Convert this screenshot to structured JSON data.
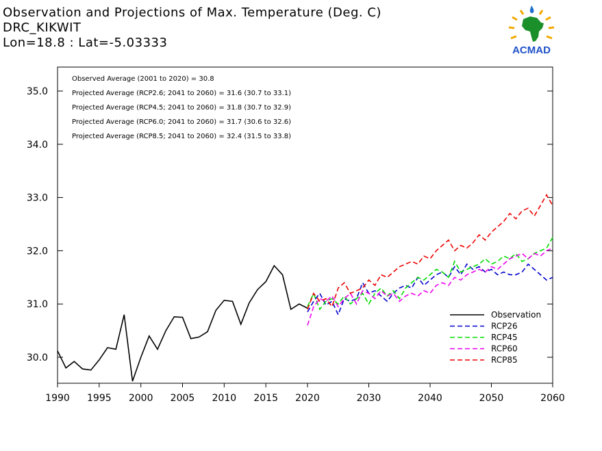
{
  "title": {
    "line1": "Observation and Projections of Max. Temperature (Deg. C)",
    "line2": "DRC_KIKWIT",
    "line3": "Lon=18.8 : Lat=-5.03333"
  },
  "logo": {
    "text": "ACMAD"
  },
  "annotations": [
    "Observed Average (2001 to 2020) = 30.8",
    "Projected Average (RCP2.6; 2041 to 2060) = 31.6 (30.7 to 33.1)",
    "Projected Average (RCP4.5; 2041 to 2060) = 31.8 (30.7 to 32.9)",
    "Projected Average (RCP6.0; 2041 to 2060) = 31.7 (30.6 to 32.6)",
    "Projected Average (RCP8.5; 2041 to 2060) = 32.4 (31.5 to 33.8)"
  ],
  "chart_data": {
    "type": "line",
    "title": "Observation and Projections of Max. Temperature (Deg. C)",
    "xlabel": "",
    "ylabel": "",
    "xlim": [
      1990,
      2060
    ],
    "ylim": [
      29.5,
      35.5
    ],
    "x_ticks": [
      1990,
      1995,
      2000,
      2005,
      2010,
      2015,
      2020,
      2030,
      2040,
      2050,
      2060
    ],
    "y_ticks": [
      "30.0",
      "31.0",
      "32.0",
      "33.0",
      "34.0",
      "35.0"
    ],
    "legend_position": "bottom-right",
    "series": [
      {
        "name": "Observation",
        "color": "#000000",
        "dashed": false,
        "x": [
          1990,
          1991,
          1992,
          1993,
          1994,
          1995,
          1996,
          1997,
          1998,
          1999,
          2000,
          2001,
          2002,
          2003,
          2004,
          2005,
          2006,
          2007,
          2008,
          2009,
          2010,
          2011,
          2012,
          2013,
          2014,
          2015,
          2016,
          2017,
          2018,
          2019,
          2020
        ],
        "y": [
          30.12,
          29.8,
          29.92,
          29.78,
          29.76,
          29.95,
          30.18,
          30.15,
          30.8,
          29.55,
          30.0,
          30.4,
          30.15,
          30.5,
          30.76,
          30.75,
          30.35,
          30.38,
          30.48,
          30.88,
          31.07,
          31.05,
          30.62,
          31.02,
          31.27,
          31.42,
          31.72,
          31.55,
          30.9,
          31.0,
          30.92
        ]
      },
      {
        "name": "RCP26",
        "color": "#0000cc",
        "dashed": true,
        "x": [
          2020,
          2021,
          2022,
          2023,
          2024,
          2025,
          2026,
          2027,
          2028,
          2029,
          2030,
          2031,
          2032,
          2033,
          2034,
          2035,
          2036,
          2037,
          2038,
          2039,
          2040,
          2041,
          2042,
          2043,
          2044,
          2045,
          2046,
          2047,
          2048,
          2049,
          2050,
          2051,
          2052,
          2053,
          2054,
          2055,
          2056,
          2057,
          2058,
          2059,
          2060
        ],
        "y": [
          30.85,
          31.05,
          31.2,
          30.98,
          31.05,
          30.8,
          31.1,
          31.05,
          31.1,
          31.4,
          31.2,
          31.25,
          31.15,
          31.05,
          31.2,
          31.3,
          31.35,
          31.3,
          31.5,
          31.35,
          31.45,
          31.55,
          31.6,
          31.5,
          31.7,
          31.55,
          31.75,
          31.65,
          31.7,
          31.6,
          31.65,
          31.55,
          31.6,
          31.55,
          31.55,
          31.6,
          31.75,
          31.65,
          31.55,
          31.45,
          31.5
        ]
      },
      {
        "name": "RCP45",
        "color": "#00dd00",
        "dashed": true,
        "x": [
          2020,
          2021,
          2022,
          2023,
          2024,
          2025,
          2026,
          2027,
          2028,
          2029,
          2030,
          2031,
          2032,
          2033,
          2034,
          2035,
          2036,
          2037,
          2038,
          2039,
          2040,
          2041,
          2042,
          2043,
          2044,
          2045,
          2046,
          2047,
          2048,
          2049,
          2050,
          2051,
          2052,
          2053,
          2054,
          2055,
          2056,
          2057,
          2058,
          2059,
          2060
        ],
        "y": [
          30.95,
          31.2,
          30.9,
          31.05,
          31.1,
          31.0,
          31.15,
          31.0,
          31.1,
          31.2,
          31.0,
          31.2,
          31.3,
          31.15,
          31.25,
          31.1,
          31.3,
          31.4,
          31.5,
          31.45,
          31.55,
          31.65,
          31.6,
          31.5,
          31.8,
          31.6,
          31.65,
          31.7,
          31.75,
          31.85,
          31.75,
          31.8,
          31.9,
          31.85,
          31.95,
          31.8,
          31.85,
          31.95,
          32.0,
          32.05,
          32.25
        ]
      },
      {
        "name": "RCP60",
        "color": "#ee00ee",
        "dashed": true,
        "x": [
          2020,
          2021,
          2022,
          2023,
          2024,
          2025,
          2026,
          2027,
          2028,
          2029,
          2030,
          2031,
          2032,
          2033,
          2034,
          2035,
          2036,
          2037,
          2038,
          2039,
          2040,
          2041,
          2042,
          2043,
          2044,
          2045,
          2046,
          2047,
          2048,
          2049,
          2050,
          2051,
          2052,
          2053,
          2054,
          2055,
          2056,
          2057,
          2058,
          2059,
          2060
        ],
        "y": [
          30.6,
          30.95,
          31.1,
          31.05,
          31.15,
          30.95,
          31.1,
          31.2,
          31.0,
          31.25,
          31.2,
          31.1,
          31.25,
          31.15,
          31.2,
          31.05,
          31.15,
          31.2,
          31.15,
          31.25,
          31.2,
          31.35,
          31.4,
          31.35,
          31.5,
          31.45,
          31.55,
          31.6,
          31.65,
          31.6,
          31.7,
          31.65,
          31.75,
          31.85,
          31.9,
          31.95,
          31.85,
          31.95,
          31.9,
          32.0,
          32.05
        ]
      },
      {
        "name": "RCP85",
        "color": "#ee0000",
        "dashed": true,
        "x": [
          2020,
          2021,
          2022,
          2023,
          2024,
          2025,
          2026,
          2027,
          2028,
          2029,
          2030,
          2031,
          2032,
          2033,
          2034,
          2035,
          2036,
          2037,
          2038,
          2039,
          2040,
          2041,
          2042,
          2043,
          2044,
          2045,
          2046,
          2047,
          2048,
          2049,
          2050,
          2051,
          2052,
          2053,
          2054,
          2055,
          2056,
          2057,
          2058,
          2059,
          2060
        ],
        "y": [
          30.9,
          31.2,
          31.05,
          31.1,
          30.95,
          31.3,
          31.4,
          31.2,
          31.25,
          31.3,
          31.45,
          31.35,
          31.55,
          31.5,
          31.6,
          31.7,
          31.75,
          31.8,
          31.75,
          31.9,
          31.85,
          32.0,
          32.1,
          32.2,
          32.0,
          32.1,
          32.05,
          32.15,
          32.3,
          32.2,
          32.35,
          32.45,
          32.55,
          32.7,
          32.6,
          32.75,
          32.8,
          32.65,
          32.85,
          33.05,
          32.85
        ]
      }
    ]
  }
}
